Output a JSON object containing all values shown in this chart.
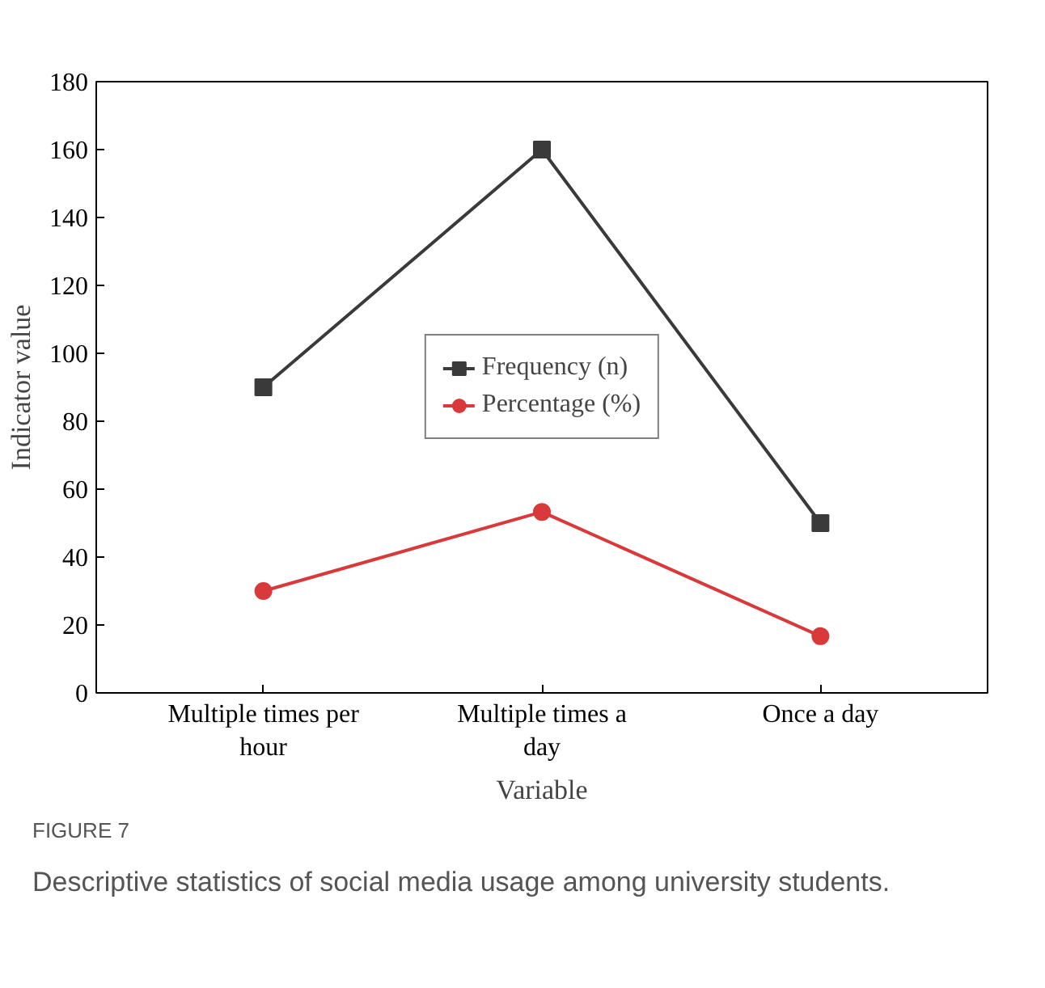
{
  "chart_data": {
    "type": "line",
    "xlabel": "Variable",
    "ylabel": "Indicator value",
    "categories": [
      "Multiple times per hour",
      "Multiple times a day",
      "Once a day"
    ],
    "series": [
      {
        "name": "Frequency (n)",
        "color": "#3a3a3a",
        "values": [
          90,
          160,
          50
        ],
        "marker": "square"
      },
      {
        "name": "Percentage (%)",
        "color": "#d9393a",
        "values": [
          30,
          53.3,
          16.7
        ],
        "marker": "circle"
      }
    ],
    "ylim": [
      0,
      180
    ],
    "yticks": [
      0,
      20,
      40,
      60,
      80,
      100,
      120,
      140,
      160,
      180
    ],
    "grid": false,
    "legend": "center",
    "line_style": "solid",
    "annotations": [
      "FIGURE 7",
      "Descriptive statistics of social media usage among university students."
    ]
  }
}
